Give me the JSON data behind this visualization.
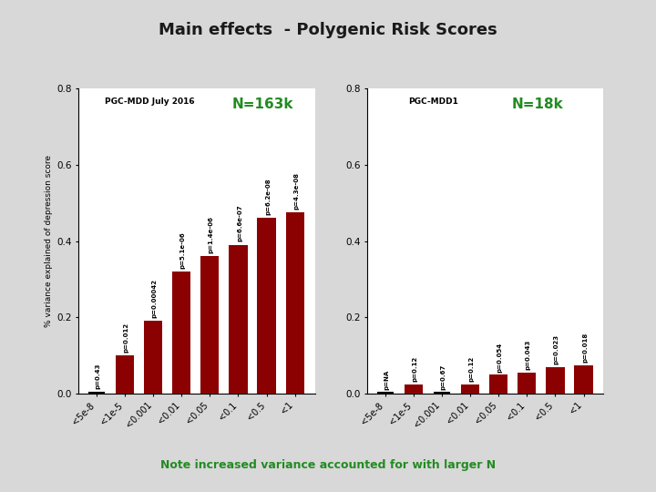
{
  "title": "Main effects  - Polygenic Risk Scores",
  "title_color": "#1a1a1a",
  "background_color": "#d8d8d8",
  "plot_bg": "#ffffff",
  "bar_color": "#8b0000",
  "green_color": "#228B22",
  "note_text": "Note increased variance accounted for with larger N",
  "ylabel": "% variance explained of depression score",
  "categories": [
    "<5e-8",
    "<1e-5",
    "<0.001",
    "<0.01",
    "<0.05",
    "<0.1",
    "<0.5",
    "<1"
  ],
  "left_chart": {
    "label": "PGC-MDD July 2016",
    "n_label": "N=163k",
    "values": [
      0.0,
      0.1,
      0.19,
      0.32,
      0.36,
      0.39,
      0.46,
      0.475
    ],
    "pvalues": [
      "p=0.43",
      "p=0.012",
      "p=0.00042",
      "p=5.1e-06",
      "p=1.4e-06",
      "p=6.6e-07",
      "p=6.2e-08",
      "p=4.3e-08"
    ],
    "ylim": [
      0,
      0.8
    ],
    "yticks": [
      0.0,
      0.2,
      0.4,
      0.6,
      0.8
    ]
  },
  "right_chart": {
    "label": "PGC-MDD1",
    "n_label": "N=18k",
    "values": [
      0.0,
      0.025,
      0.0,
      0.025,
      0.05,
      0.055,
      0.07,
      0.075
    ],
    "pvalues": [
      "p=NA",
      "p=0.12",
      "p=0.67",
      "p=0.12",
      "p=0.054",
      "p=0.043",
      "p=0.023",
      "p=0.018"
    ],
    "ylim": [
      0,
      0.8
    ],
    "yticks": [
      0.0,
      0.2,
      0.4,
      0.6,
      0.8
    ]
  }
}
